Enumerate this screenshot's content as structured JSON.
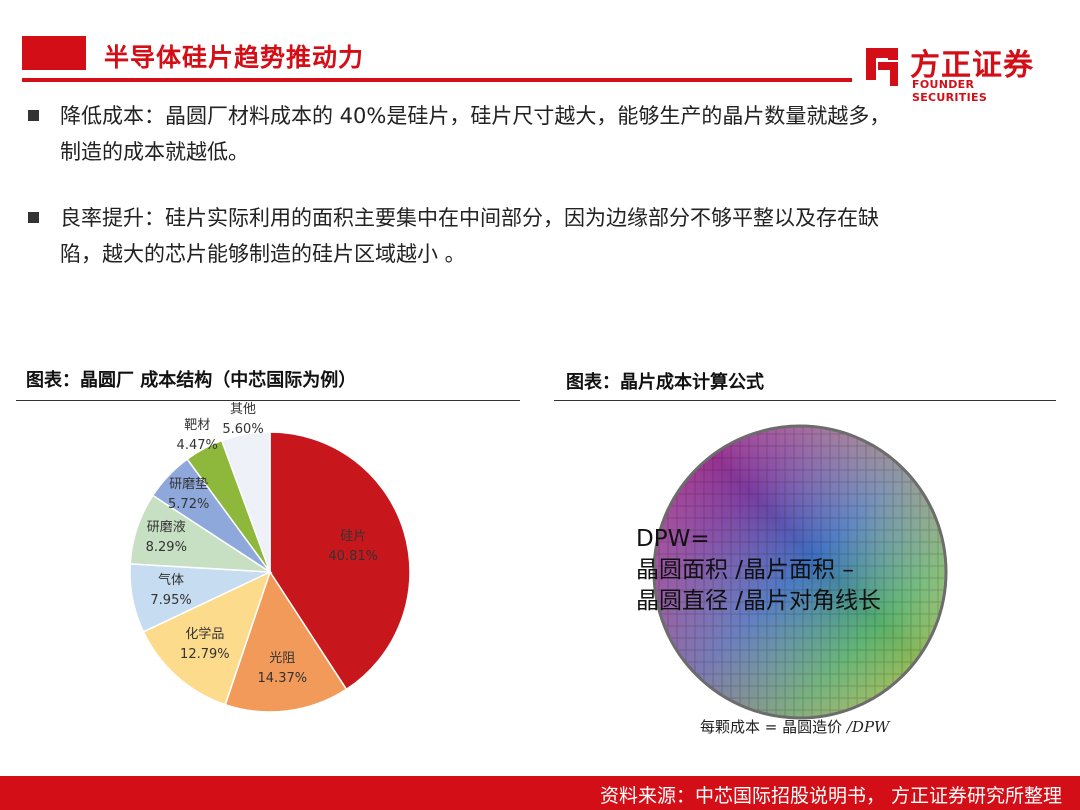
{
  "header": {
    "title": "半导体硅片趋势推动力",
    "logo_cn": "方正证券",
    "logo_en": "FOUNDER SECURITIES",
    "brand_color": "#d40e17"
  },
  "bullets": [
    {
      "line1": "降低成本：晶圆厂材料成本的 40%是硅片，硅片尺寸越大，能够生产的晶片数量就越多，",
      "line2": "制造的成本就越低。"
    },
    {
      "line1": "良率提升：硅片实际利用的面积主要集中在中间部分，因为边缘部分不够平整以及存在缺",
      "line2": "陷，越大的芯片能够制造的硅片区域越小 。"
    }
  ],
  "left_section": {
    "title": "图表：晶圆厂 成本结构（中芯国际为例）"
  },
  "right_section": {
    "title": "图表：晶片成本计算公式",
    "dpw_lines": [
      "DPW=",
      "晶圆面积 /晶片面积 –",
      "晶圆直径 /晶片对角线长"
    ],
    "formula_text": "每颗成本 = 晶圆造价 ",
    "formula_italic": "/DPW"
  },
  "chart_data": {
    "type": "pie",
    "title": "",
    "categories": [
      "硅片",
      "光阻",
      "化学品",
      "气体",
      "研磨液",
      "研磨垫",
      "靶材",
      "其他"
    ],
    "values": [
      40.81,
      14.37,
      12.79,
      7.95,
      8.29,
      5.72,
      4.47,
      5.6
    ],
    "labels": [
      "40.81%",
      "14.37%",
      "12.79%",
      "7.95%",
      "8.29%",
      "5.72%",
      "4.47%",
      "5.60%"
    ],
    "colors": [
      "#c8171c",
      "#f29a5a",
      "#fddb8c",
      "#c6dcf1",
      "#c7e0c3",
      "#8fa8dc",
      "#8db83c",
      "#eef1f7"
    ],
    "legend": "none"
  },
  "footer": {
    "text": "资料来源：中芯国际招股说明书， 方正证券研究所整理"
  }
}
